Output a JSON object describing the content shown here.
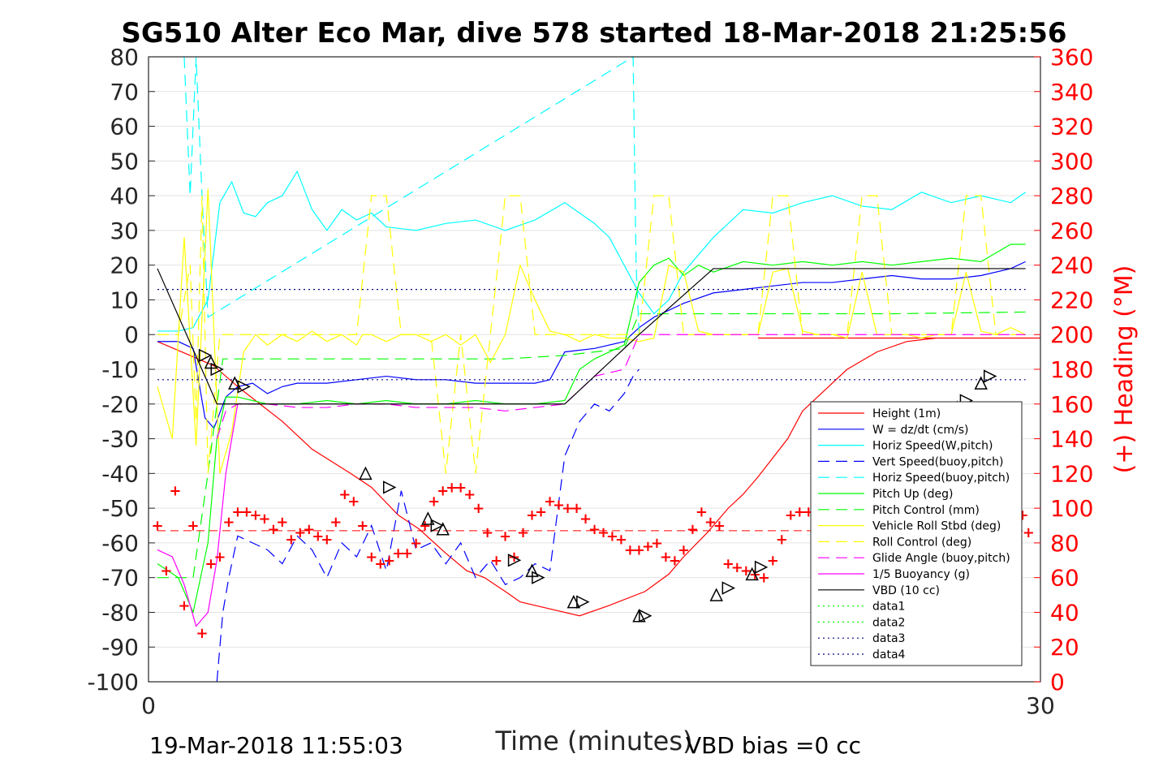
{
  "chart_data": {
    "type": "line",
    "title": "SG510 Alter Eco Mar, dive 578 started 18-Mar-2018 21:25:56",
    "xlabel": "Time (minutes)",
    "ylabel_right": "(+) Heading (°M)",
    "xlim": [
      0,
      30
    ],
    "ylim": [
      -100,
      80
    ],
    "ylim_right": [
      0,
      360
    ],
    "xticks": [
      "0",
      "30"
    ],
    "yticks": [
      "80",
      "70",
      "60",
      "50",
      "40",
      "30",
      "20",
      "10",
      "0",
      "-10",
      "-20",
      "-30",
      "-40",
      "-50",
      "-60",
      "-70",
      "-80",
      "-90",
      "-100"
    ],
    "yticks_right": [
      "360",
      "340",
      "320",
      "300",
      "280",
      "260",
      "240",
      "220",
      "200",
      "180",
      "160",
      "140",
      "120",
      "100",
      "80",
      "60",
      "40",
      "20",
      "0"
    ],
    "grid": true,
    "legend_position": "lower-right",
    "footer_left": "19-Mar-2018 11:55:03",
    "footer_right": "VBD bias =0 cc",
    "series": [
      {
        "name": "Height (1m)",
        "color": "#ff0000",
        "style": "solid",
        "x": [
          0.3,
          1.4,
          2.2,
          3.0,
          4.5,
          5.5,
          6.8,
          7.5,
          8.4,
          9.1,
          10.0,
          10.7,
          11.3,
          12.0,
          12.5,
          13.5,
          14.5,
          15.5,
          16.7,
          17.5,
          18.0,
          18.8,
          19.5,
          20.0,
          20.5,
          21.5,
          22.0,
          22.5,
          23.0,
          23.5,
          24.5,
          25.5,
          26.5,
          27.5,
          28.3,
          28.6,
          29.0,
          29.5,
          30.0,
          20.5
        ],
        "y": [
          -2,
          -6,
          -9,
          -15,
          -25,
          -33,
          -40,
          -44,
          -52,
          -56,
          -63,
          -68,
          -70,
          -74,
          -77,
          -79,
          -81,
          -78,
          -74,
          -69,
          -64,
          -57,
          -50,
          -46,
          -41,
          -30,
          -22,
          -18,
          -14,
          -10,
          -5,
          -2,
          -1,
          -1,
          -1,
          -1,
          -1,
          -1,
          -1,
          -1
        ]
      },
      {
        "name": "W = dz/dt (cm/s)",
        "color": "#0000ff",
        "style": "solid",
        "x": [
          0.3,
          1.0,
          1.5,
          1.9,
          2.2,
          2.6,
          3.0,
          3.5,
          4.0,
          4.5,
          5.0,
          6.0,
          7.0,
          8.0,
          9.0,
          10.0,
          11.0,
          12.0,
          13.0,
          13.5,
          14.0,
          15.0,
          16.0,
          16.5,
          17.0,
          18.0,
          19.0,
          20.0,
          21.0,
          22.0,
          23.0,
          24.0,
          25.0,
          26.0,
          27.0,
          28.0,
          29.0,
          29.5
        ],
        "y": [
          -2,
          -2,
          -4,
          -24,
          -27,
          -18,
          -15,
          -14,
          -17,
          -15,
          -14,
          -14,
          -13,
          -12,
          -13,
          -13,
          -14,
          -14,
          -14,
          -13,
          -5,
          -4,
          -2,
          2,
          5,
          9,
          12,
          13,
          14,
          15,
          15,
          16,
          17,
          16,
          16,
          17,
          19,
          21
        ]
      },
      {
        "name": "Horiz Speed(W,pitch)",
        "color": "#00ffff",
        "style": "solid",
        "x": [
          0.3,
          1.0,
          1.5,
          2.0,
          2.4,
          2.8,
          3.2,
          3.6,
          4.0,
          4.5,
          5.0,
          5.5,
          6.0,
          6.5,
          7.0,
          7.5,
          8.0,
          9.0,
          10.0,
          11.0,
          12.0,
          13.0,
          14.0,
          15.0,
          15.5,
          16.0,
          16.5,
          17.0,
          17.5,
          18.0,
          19.0,
          20.0,
          21.0,
          22.0,
          23.0,
          24.0,
          25.0,
          26.0,
          27.0,
          28.0,
          29.0,
          29.5
        ],
        "y": [
          1,
          1,
          2,
          10,
          38,
          44,
          35,
          34,
          38,
          40,
          47,
          36,
          30,
          36,
          33,
          35,
          31,
          30,
          32,
          33,
          30,
          33,
          38,
          32,
          28,
          20,
          12,
          6,
          10,
          18,
          28,
          36,
          35,
          38,
          40,
          37,
          36,
          41,
          38,
          40,
          38,
          41
        ]
      },
      {
        "name": "Vert Speed(buoy,pitch)",
        "color": "#0000ff",
        "style": "dashed",
        "x": [
          2.3,
          2.5,
          2.7,
          3.0,
          3.5,
          4.0,
          4.5,
          5.0,
          5.5,
          6.0,
          6.5,
          7.0,
          7.5,
          8.0,
          8.5,
          9.0,
          9.5,
          10.0,
          10.5,
          11.0,
          11.5,
          12.0,
          12.5,
          13.0,
          13.5,
          14.0,
          14.5,
          15.0,
          15.5,
          16.0,
          16.3,
          16.5
        ],
        "y": [
          -100,
          -80,
          -70,
          -58,
          -60,
          -62,
          -66,
          -58,
          -62,
          -70,
          -60,
          -64,
          -55,
          -68,
          -45,
          -62,
          -60,
          -66,
          -60,
          -70,
          -65,
          -72,
          -70,
          -66,
          -68,
          -35,
          -25,
          -20,
          -22,
          -17,
          -12,
          -10
        ]
      },
      {
        "name": "Horiz Speed(buoy,pitch)",
        "color": "#00ffff",
        "style": "dashed",
        "x": [
          1.2,
          1.4,
          1.6,
          1.8,
          2.0,
          16.3,
          16.4,
          16.5
        ],
        "y": [
          80,
          40,
          80,
          40,
          5,
          80,
          20,
          0
        ]
      },
      {
        "name": "Pitch Up (deg)",
        "color": "#00ff00",
        "style": "solid",
        "x": [
          0.3,
          1.0,
          1.5,
          2.0,
          2.3,
          2.6,
          3.0,
          3.5,
          4.0,
          5.0,
          6.0,
          7.0,
          8.0,
          9.0,
          10.0,
          11.0,
          12.0,
          13.0,
          14.0,
          14.5,
          15.0,
          16.0,
          16.5,
          17.0,
          17.5,
          18.0,
          18.5,
          19.0,
          20.0,
          21.0,
          22.0,
          23.0,
          24.0,
          25.0,
          26.0,
          27.0,
          28.0,
          29.0,
          29.5
        ],
        "y": [
          -66,
          -70,
          -80,
          -60,
          -30,
          -18,
          -18,
          -19,
          -20,
          -20,
          -19,
          -20,
          -19,
          -20,
          -20,
          -19,
          -20,
          -20,
          -19,
          -10,
          -7,
          -3,
          15,
          20,
          22,
          17,
          20,
          18,
          21,
          20,
          21,
          20,
          21,
          20,
          21,
          22,
          21,
          26,
          26
        ]
      },
      {
        "name": "Pitch Control (mm)",
        "color": "#00ff00",
        "style": "dashed",
        "x": [
          0.3,
          1.5,
          2.0,
          2.5,
          3.0,
          6.0,
          9.0,
          12.0,
          14.0,
          16.0,
          16.5,
          20.0,
          25.0,
          29.5
        ],
        "y": [
          -70,
          -70,
          -40,
          -7,
          -7,
          -7,
          -7,
          -7,
          -6,
          -4,
          6,
          6,
          6,
          6.5
        ]
      },
      {
        "name": "Vehicle Roll Stbd (deg)",
        "color": "#ffff00",
        "style": "solid",
        "x": [
          0.3,
          0.8,
          1.2,
          1.6,
          2.0,
          2.4,
          2.8,
          3.2,
          3.6,
          4.0,
          4.5,
          5.0,
          5.5,
          6.0,
          6.5,
          7.0,
          7.2,
          7.5,
          8.0,
          8.5,
          9.0,
          9.5,
          10.0,
          10.5,
          11.0,
          11.5,
          12.0,
          12.5,
          13.0,
          13.5,
          14.0,
          14.5,
          15.0,
          15.5,
          16.0,
          16.5,
          17.0,
          17.5,
          18.0,
          18.5,
          19.0,
          19.5,
          20.0,
          20.5,
          21.0,
          21.5,
          22.0,
          22.5,
          23.0,
          23.5,
          24.0,
          24.5,
          25.0,
          25.5,
          26.0,
          26.5,
          27.0,
          27.5,
          28.0,
          28.5,
          29.0,
          29.5
        ],
        "y": [
          -15,
          -30,
          28,
          -32,
          42,
          -40,
          -28,
          -5,
          0,
          -3,
          0,
          -2,
          1,
          -2,
          0,
          -3,
          0,
          0,
          -2,
          0,
          0,
          -2,
          0,
          -3,
          0,
          -8,
          0,
          20,
          10,
          1,
          0,
          -2,
          0,
          -1,
          -1,
          -2,
          -1,
          20,
          18,
          1,
          0,
          0,
          0,
          0,
          18,
          19,
          1,
          0,
          0,
          -1,
          18,
          0,
          0,
          0,
          -1,
          0,
          0,
          18,
          1,
          0,
          2,
          0
        ]
      },
      {
        "name": "Roll Control (deg)",
        "color": "#ffff00",
        "style": "dashed",
        "x": [
          0.3,
          1.0,
          1.4,
          1.6,
          1.8,
          2.0,
          2.4,
          3.0,
          7.0,
          7.5,
          8.0,
          8.5,
          9.5,
          10.0,
          10.5,
          11.0,
          11.5,
          12.0,
          12.5,
          13.0,
          13.5,
          14.0,
          14.5,
          15.0,
          16.0,
          16.5,
          17.0,
          17.5,
          18.0,
          18.5,
          19.0,
          19.5,
          20.0,
          20.5,
          21.0,
          21.5,
          22.0,
          22.5,
          23.0,
          23.5,
          24.0,
          24.5,
          25.0,
          25.5,
          26.0,
          26.5,
          27.0,
          27.5,
          28.0,
          28.5,
          29.0,
          29.5
        ],
        "y": [
          0,
          0,
          20,
          -25,
          40,
          -40,
          0,
          0,
          0,
          40,
          40,
          0,
          0,
          -40,
          0,
          -40,
          0,
          40,
          40,
          0,
          0,
          0,
          0,
          0,
          0,
          0,
          40,
          40,
          0,
          0,
          0,
          0,
          0,
          0,
          40,
          40,
          0,
          0,
          0,
          0,
          40,
          40,
          0,
          0,
          0,
          0,
          0,
          40,
          40,
          0,
          0,
          0
        ]
      },
      {
        "name": "Glide Angle (buoy,pitch)",
        "color": "#ff00ff",
        "style": "dashed",
        "x": [
          2.3,
          2.6,
          3.0,
          4.0,
          5.0,
          6.0,
          7.0,
          8.0,
          9.0,
          10.0,
          11.0,
          12.0,
          13.0,
          14.0,
          15.0,
          16.0,
          16.5,
          20.0,
          25.0,
          29.5
        ],
        "y": [
          -30,
          -22,
          -20,
          -20,
          -21,
          -21,
          -20,
          -20,
          -21,
          -21,
          -21,
          -22,
          -21,
          -20,
          -12,
          -10,
          0,
          0,
          0,
          0
        ]
      },
      {
        "name": "1/5 Buoyancy (g)",
        "color": "#ff00ff",
        "style": "solid",
        "x": [
          0.3,
          0.8,
          1.2,
          1.6,
          2.0,
          2.3,
          2.6,
          3.0
        ],
        "y": [
          -62,
          -64,
          -72,
          -84,
          -80,
          -65,
          -40,
          -20
        ]
      },
      {
        "name": "VBD (10 cc)",
        "color": "#000000",
        "style": "solid",
        "x": [
          0.3,
          2.0,
          2.3,
          14.0,
          16.5,
          19.0,
          29.5
        ],
        "y": [
          19,
          -14,
          -20,
          -20,
          0,
          19,
          19
        ]
      },
      {
        "name": "data1",
        "color": "#00ff00",
        "style": "dotted",
        "x": [],
        "y": []
      },
      {
        "name": "data2",
        "color": "#00ff00",
        "style": "dotted",
        "x": [],
        "y": []
      },
      {
        "name": "data3",
        "color": "#000080",
        "style": "dotted",
        "x": [
          0.3,
          29.5
        ],
        "y": [
          -13,
          -13
        ]
      },
      {
        "name": "data4",
        "color": "#000080",
        "style": "dotted",
        "x": [
          0.3,
          29.5
        ],
        "y": [
          13,
          13
        ]
      }
    ],
    "heading_series": {
      "axis": "right",
      "color": "#ff0000",
      "marker": "+",
      "mean_line_y": 87,
      "x": [
        0.3,
        0.6,
        0.9,
        1.2,
        1.5,
        1.8,
        2.1,
        2.4,
        2.7,
        3.0,
        3.3,
        3.6,
        3.9,
        4.2,
        4.5,
        4.8,
        5.1,
        5.4,
        5.7,
        6.0,
        6.3,
        6.6,
        6.9,
        7.2,
        7.5,
        7.8,
        8.1,
        8.4,
        8.7,
        9.0,
        9.3,
        9.6,
        9.9,
        10.2,
        10.5,
        10.8,
        11.1,
        11.4,
        11.7,
        12.0,
        12.3,
        12.6,
        12.9,
        13.2,
        13.5,
        13.8,
        14.1,
        14.4,
        14.7,
        15.0,
        15.3,
        15.6,
        15.9,
        16.2,
        16.5,
        16.8,
        17.1,
        17.4,
        17.7,
        18.0,
        18.3,
        18.6,
        18.9,
        19.2,
        19.5,
        19.8,
        20.1,
        20.4,
        20.7,
        21.0,
        21.3,
        21.6,
        21.9,
        22.2,
        22.5,
        22.8,
        23.1,
        23.4,
        23.7,
        24.0,
        24.3,
        24.6,
        24.9,
        25.2,
        25.5,
        25.8,
        26.1,
        26.4,
        26.7,
        27.0,
        27.3,
        27.6,
        27.9,
        28.2,
        28.5,
        28.8,
        29.1,
        29.4,
        29.6
      ],
      "y": [
        90,
        64,
        110,
        44,
        90,
        28,
        68,
        72,
        92,
        98,
        98,
        96,
        94,
        88,
        92,
        82,
        86,
        88,
        84,
        82,
        92,
        108,
        104,
        90,
        72,
        68,
        70,
        74,
        74,
        80,
        90,
        104,
        110,
        112,
        112,
        108,
        100,
        86,
        70,
        84,
        72,
        86,
        96,
        98,
        104,
        102,
        100,
        100,
        94,
        88,
        86,
        84,
        82,
        76,
        76,
        78,
        80,
        72,
        70,
        76,
        88,
        98,
        92,
        90,
        68,
        66,
        64,
        62,
        60,
        70,
        82,
        96,
        98,
        98,
        94,
        90,
        82,
        82,
        76,
        70,
        78,
        84,
        100,
        104,
        98,
        96,
        96,
        90,
        88,
        86,
        90,
        92,
        96,
        98,
        104,
        102,
        100,
        96,
        86
      ]
    },
    "triangle_markers": {
      "color": "#000000",
      "points": [
        {
          "x": 1.9,
          "y": -6
        },
        {
          "x": 2.1,
          "y": -8
        },
        {
          "x": 2.3,
          "y": -10
        },
        {
          "x": 2.9,
          "y": -14
        },
        {
          "x": 3.2,
          "y": -15
        },
        {
          "x": 7.3,
          "y": -40
        },
        {
          "x": 8.1,
          "y": -44
        },
        {
          "x": 9.4,
          "y": -53
        },
        {
          "x": 9.7,
          "y": -55
        },
        {
          "x": 9.9,
          "y": -56
        },
        {
          "x": 12.3,
          "y": -65
        },
        {
          "x": 12.9,
          "y": -68
        },
        {
          "x": 13.1,
          "y": -70
        },
        {
          "x": 14.3,
          "y": -77
        },
        {
          "x": 14.6,
          "y": -77
        },
        {
          "x": 16.5,
          "y": -81
        },
        {
          "x": 16.7,
          "y": -81
        },
        {
          "x": 19.1,
          "y": -75
        },
        {
          "x": 19.5,
          "y": -73
        },
        {
          "x": 20.3,
          "y": -69
        },
        {
          "x": 20.6,
          "y": -67
        },
        {
          "x": 23.3,
          "y": -50
        },
        {
          "x": 24.6,
          "y": -41
        },
        {
          "x": 27.2,
          "y": -21
        },
        {
          "x": 27.5,
          "y": -19
        },
        {
          "x": 28.0,
          "y": -14
        },
        {
          "x": 28.3,
          "y": -12
        }
      ]
    }
  }
}
